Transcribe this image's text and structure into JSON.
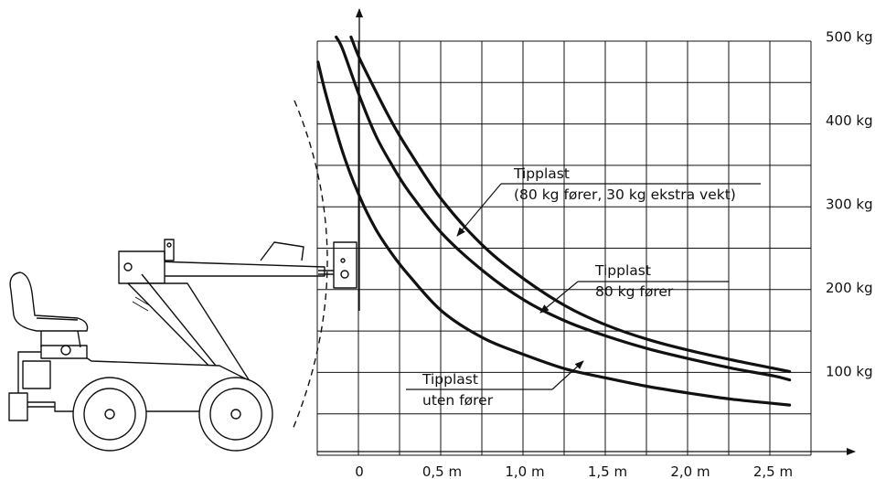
{
  "chart_data": {
    "type": "line",
    "x_tick_labels": [
      "0",
      "0,5 m",
      "1,0 m",
      "1,5 m",
      "2,0 m",
      "2,5 m"
    ],
    "y_tick_labels": [
      "100 kg",
      "200 kg",
      "300 kg",
      "400 kg",
      "500 kg"
    ],
    "xlim": [
      -0.25,
      2.6
    ],
    "ylim": [
      -50,
      500
    ],
    "grid": true,
    "series": [
      {
        "name": "Tipplast (80 kg fører, 30 kg ekstra vekt)",
        "x": [
          -0.05,
          0.0,
          0.1,
          0.2,
          0.3,
          0.5,
          0.75,
          1.0,
          1.25,
          1.5,
          1.75,
          2.0,
          2.25,
          2.5,
          2.6
        ],
        "y": [
          500,
          475,
          435,
          397,
          364,
          305,
          250,
          210,
          178,
          155,
          138,
          125,
          114,
          104,
          100
        ]
      },
      {
        "name": "Tipplast 80 kg fører",
        "x": [
          -0.14,
          -0.1,
          0.0,
          0.1,
          0.2,
          0.3,
          0.5,
          0.75,
          1.0,
          1.25,
          1.5,
          1.75,
          2.0,
          2.25,
          2.5,
          2.6
        ],
        "y": [
          500,
          485,
          430,
          382,
          346,
          315,
          265,
          220,
          185,
          160,
          142,
          127,
          115,
          104,
          95,
          90
        ]
      },
      {
        "name": "Tipplast uten fører",
        "x": [
          -0.25,
          -0.2,
          -0.1,
          0.0,
          0.1,
          0.2,
          0.3,
          0.5,
          0.75,
          1.0,
          1.25,
          1.5,
          1.75,
          2.0,
          2.25,
          2.5,
          2.6
        ],
        "y": [
          470,
          430,
          362,
          310,
          270,
          240,
          215,
          172,
          140,
          120,
          103,
          92,
          82,
          74,
          67,
          62,
          60
        ]
      }
    ],
    "annotations": [
      {
        "lines": [
          "Tipplast",
          "(80 kg fører, 30 kg ekstra vekt)"
        ],
        "series": 0
      },
      {
        "lines": [
          "Tipplast",
          "80 kg fører"
        ],
        "series": 1
      },
      {
        "lines": [
          "Tipplast",
          "uten fører"
        ],
        "series": 2
      }
    ]
  }
}
